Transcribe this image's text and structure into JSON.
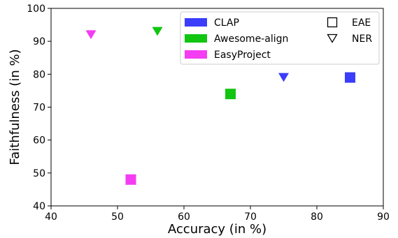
{
  "chart_data": {
    "type": "scatter",
    "title": "",
    "xlabel": "Accuracy (in %)",
    "ylabel": "Faithfulness (in %)",
    "xlim": [
      40,
      90
    ],
    "ylim": [
      40,
      100
    ],
    "xticks": [
      40,
      50,
      60,
      70,
      80,
      90
    ],
    "yticks": [
      40,
      50,
      60,
      70,
      80,
      90,
      100
    ],
    "grid": false,
    "legend_position": "top-right",
    "series": [
      {
        "name": "CLAP",
        "color": "#3a3dfb",
        "points": [
          {
            "x": 85,
            "y": 79,
            "marker": "square",
            "task": "EAE"
          },
          {
            "x": 75,
            "y": 79,
            "marker": "triangle-down",
            "task": "NER"
          }
        ]
      },
      {
        "name": "Awesome-align",
        "color": "#11c511",
        "points": [
          {
            "x": 67,
            "y": 74,
            "marker": "square",
            "task": "EAE"
          },
          {
            "x": 56,
            "y": 93,
            "marker": "triangle-down",
            "task": "NER"
          }
        ]
      },
      {
        "name": "EasyProject",
        "color": "#f43cf3",
        "points": [
          {
            "x": 52,
            "y": 48,
            "marker": "square",
            "task": "EAE"
          },
          {
            "x": 46,
            "y": 92,
            "marker": "triangle-down",
            "task": "NER"
          }
        ]
      }
    ],
    "marker_legend": [
      {
        "name": "EAE",
        "marker": "square"
      },
      {
        "name": "NER",
        "marker": "triangle-down"
      }
    ]
  }
}
